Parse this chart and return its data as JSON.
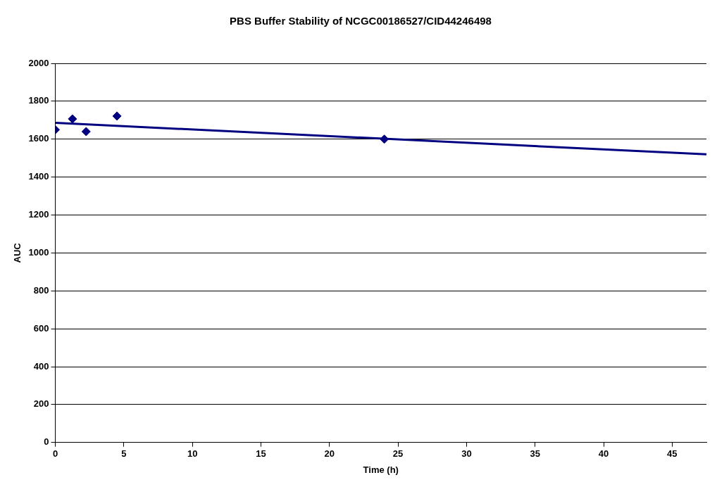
{
  "chart_data": {
    "type": "scatter",
    "title": "PBS Buffer Stability of NCGC00186527/CID44246498",
    "xlabel": "Time (h)",
    "ylabel": "AUC",
    "x": [
      0,
      1.25,
      2.25,
      4.5,
      24
    ],
    "series": [
      {
        "color": "#000080",
        "values": [
          1650,
          1707,
          1640,
          1722,
          1600
        ],
        "marker": "diamond"
      },
      {
        "type": "line",
        "color": "#000080",
        "x": [
          0,
          47.5
        ],
        "values": [
          1686,
          1520
        ],
        "marker": "none"
      }
    ],
    "xlim": [
      0,
      47.5
    ],
    "xticks": [
      0,
      5,
      10,
      15,
      20,
      25,
      30,
      35,
      40,
      45
    ],
    "ylim": [
      0,
      2000
    ],
    "yticks": [
      0,
      200,
      400,
      600,
      800,
      1000,
      1200,
      1400,
      1600,
      1800,
      2000
    ],
    "grid": "y",
    "legend": false
  }
}
